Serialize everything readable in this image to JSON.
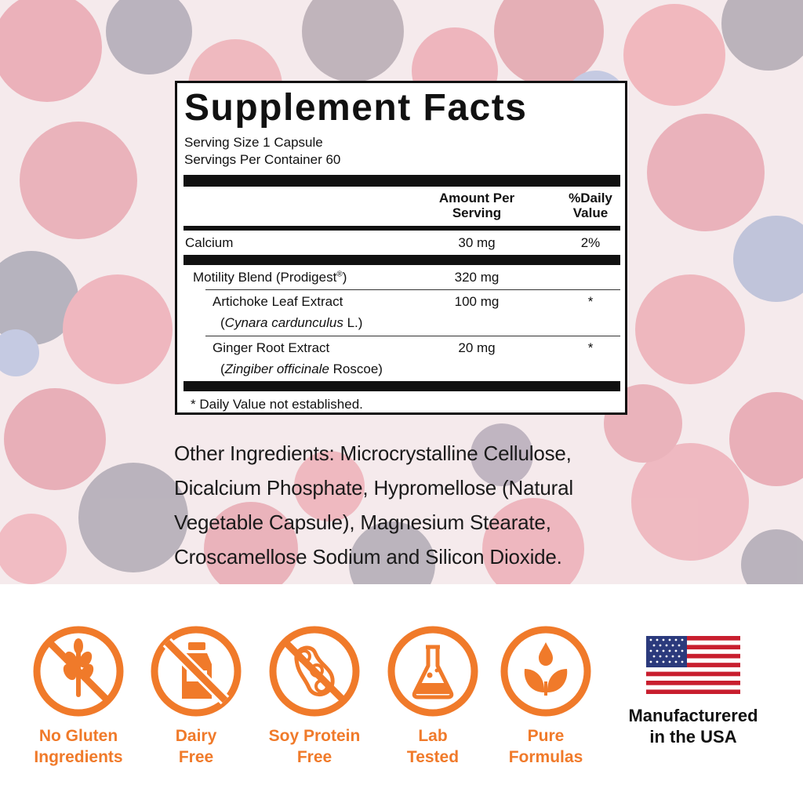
{
  "colors": {
    "accent": "#F07A2A",
    "ink": "#111111"
  },
  "facts": {
    "title": "Supplement Facts",
    "serving_size": "Serving Size  1 Capsule",
    "servings_per_container": "Servings Per Container  60",
    "col_amount_line1": "Amount Per",
    "col_amount_line2": "Serving",
    "col_dv_line1": "%Daily",
    "col_dv_line2": "Value",
    "calcium": {
      "name": "Calcium",
      "amount": "30 mg",
      "dv": "2%"
    },
    "blend": {
      "name": "Motility Blend (Prodigest",
      "reg": "®",
      "close": ")",
      "amount": "320 mg"
    },
    "artichoke": {
      "name": "Artichoke Leaf Extract",
      "latin_open": "(",
      "latin": "Cynara cardunculus",
      "latin_tail": " L.)",
      "amount": "100 mg",
      "dv": "*"
    },
    "ginger": {
      "name": "Ginger Root Extract",
      "latin_open": "(",
      "latin": "Zingiber officinale",
      "latin_tail": " Roscoe)",
      "amount": "20 mg",
      "dv": "*"
    },
    "footnote": "* Daily Value not established."
  },
  "other_ingredients": "Other Ingredients: Microcrystalline Cellulose, Dicalcium Phosphate, Hypromellose (Natural Vegetable Capsule), Magnesium Stearate, Croscamellose Sodium and Silicon Dioxide.",
  "badges": [
    {
      "icon": "no-gluten-wheat-icon",
      "line1": "No Gluten",
      "line2": "Ingredients"
    },
    {
      "icon": "no-dairy-milk-icon",
      "line1": "Dairy",
      "line2": "Free"
    },
    {
      "icon": "no-soy-bean-icon",
      "line1": "Soy Protein",
      "line2": "Free"
    },
    {
      "icon": "lab-flask-icon",
      "line1": "Lab",
      "line2": "Tested"
    },
    {
      "icon": "leaf-drop-icon",
      "line1": "Pure",
      "line2": "Formulas"
    }
  ],
  "usa": {
    "icon": "us-flag-icon",
    "line1": "Manufacturered",
    "line2": "in the USA"
  }
}
